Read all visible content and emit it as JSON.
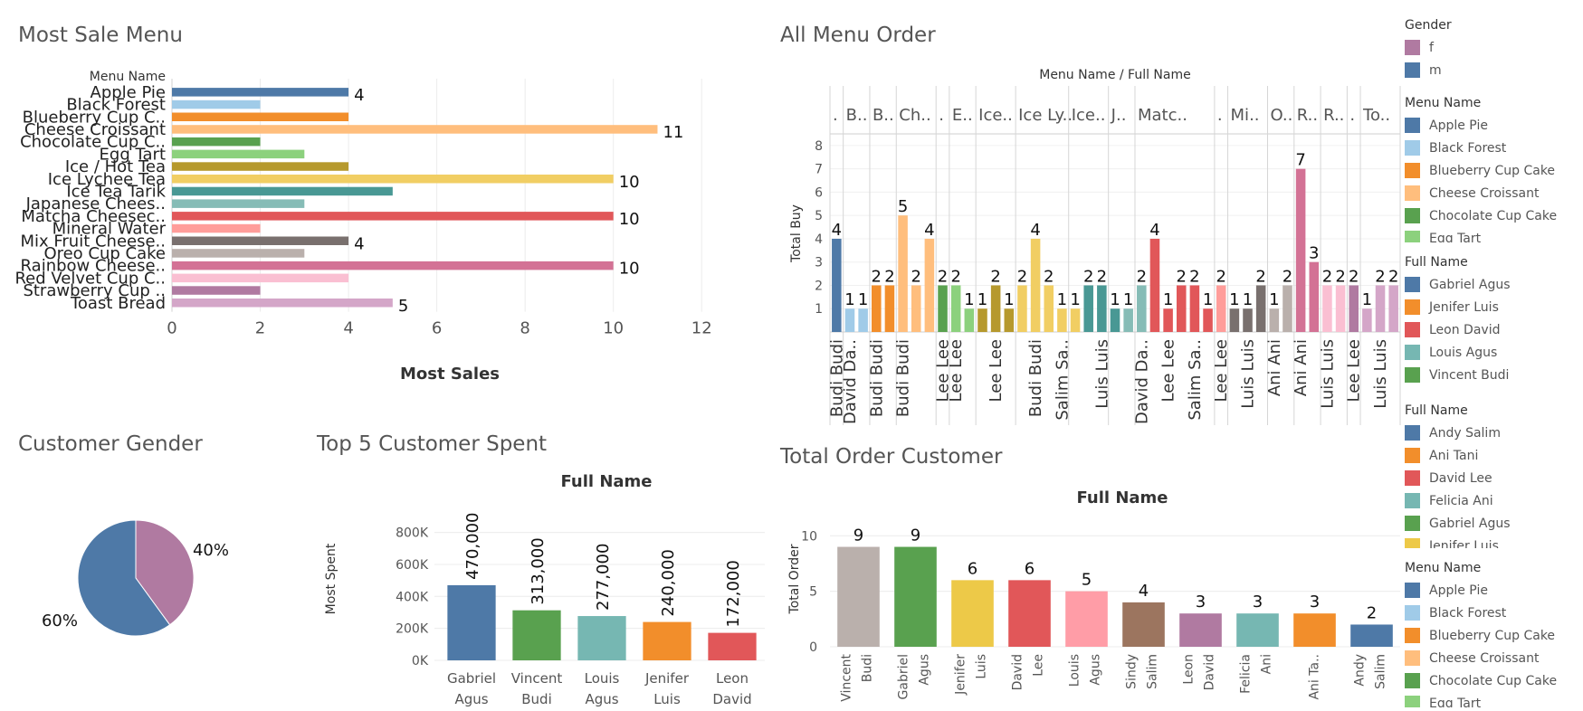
{
  "titles": {
    "most_sale_menu": "Most Sale Menu",
    "all_menu_order": "All Menu Order",
    "customer_gender": "Customer Gender",
    "top5_customer_spent": "Top 5 Customer Spent",
    "total_order_customer": "Total Order Customer"
  },
  "colors": {
    "Apple Pie": "#4e79a7",
    "Black Forest": "#a0cbe8",
    "Blueberry Cup Cake": "#f28e2b",
    "Cheese Croissant": "#ffbe7d",
    "Chocolate Cup Cake": "#59a14f",
    "Egg Tart": "#8cd17d",
    "Ice / Hot Tea": "#b6992d",
    "Ice Lychee Tea": "#f1ce63",
    "Ice Tea Tarik": "#499894",
    "Japanese Chees..": "#86bcb6",
    "Matcha Cheesec..": "#e15759",
    "Mineral Water": "#ff9d9a",
    "Mix Fruit Cheese..": "#79706e",
    "Oreo Cup Cake": "#bab0ac",
    "Rainbow Cheese..": "#d37295",
    "Red Velvet Cup C..": "#fabfd2",
    "Strawberry Cup ..": "#b07aa1",
    "Toast Bread": "#d4a6c8"
  },
  "chart_data": [
    {
      "type": "bar",
      "title": "Most Sale Menu",
      "orientation": "horizontal",
      "category_header": "Menu Name",
      "categories": [
        "Apple Pie",
        "Black Forest",
        "Blueberry Cup C..",
        "Cheese Croissant",
        "Chocolate Cup C..",
        "Egg Tart",
        "Ice / Hot Tea",
        "Ice Lychee Tea",
        "Ice Tea Tarik",
        "Japanese Chees..",
        "Matcha Cheesec..",
        "Mineral Water",
        "Mix Fruit Cheese..",
        "Oreo Cup Cake",
        "Rainbow Cheese..",
        "Red Velvet Cup C..",
        "Strawberry Cup ..",
        "Toast Bread"
      ],
      "values": [
        4,
        2,
        4,
        11,
        2,
        3,
        4,
        10,
        5,
        3,
        10,
        2,
        4,
        3,
        10,
        4,
        2,
        5
      ],
      "data_labels": [
        "4",
        "",
        "",
        "11",
        "",
        "",
        "",
        "10",
        "",
        "",
        "10",
        "",
        "4",
        "",
        "10",
        "",
        "",
        "5"
      ],
      "colors": [
        "#4e79a7",
        "#a0cbe8",
        "#f28e2b",
        "#ffbe7d",
        "#59a14f",
        "#8cd17d",
        "#b6992d",
        "#f1ce63",
        "#499894",
        "#86bcb6",
        "#e15759",
        "#ff9d9a",
        "#79706e",
        "#bab0ac",
        "#d37295",
        "#fabfd2",
        "#b07aa1",
        "#d4a6c8"
      ],
      "xlabel": "Most Sales",
      "xticks": [
        "0",
        "2",
        "4",
        "6",
        "8",
        "10",
        "12"
      ],
      "xlim": [
        0,
        13
      ],
      "grid": true
    },
    {
      "type": "bar",
      "title": "All Menu Order",
      "header": "Menu Name / Full Name",
      "ylabel": "Total Buy",
      "yticks": [
        "1",
        "2",
        "3",
        "4",
        "5",
        "6",
        "7",
        "8"
      ],
      "ylim": [
        0,
        8.5
      ],
      "groups": [
        {
          "label": ".",
          "bars": 1
        },
        {
          "label": "B..",
          "bars": 2
        },
        {
          "label": "B..",
          "bars": 2
        },
        {
          "label": "Ch..",
          "bars": 3
        },
        {
          "label": ".",
          "bars": 1
        },
        {
          "label": "E..",
          "bars": 2
        },
        {
          "label": "Ice..",
          "bars": 3
        },
        {
          "label": "Ice Ly..",
          "bars": 4
        },
        {
          "label": "Ice..",
          "bars": 3
        },
        {
          "label": "J..",
          "bars": 2
        },
        {
          "label": "Matc..",
          "bars": 6
        },
        {
          "label": ".",
          "bars": 1
        },
        {
          "label": "Mi..",
          "bars": 3
        },
        {
          "label": "O..",
          "bars": 2
        },
        {
          "label": "R..",
          "bars": 2
        },
        {
          "label": "R..",
          "bars": 2
        },
        {
          "label": ".",
          "bars": 1
        },
        {
          "label": "To..",
          "bars": 3
        }
      ],
      "values": [
        4,
        1,
        1,
        2,
        2,
        5,
        2,
        4,
        2,
        2,
        1,
        1,
        2,
        1,
        2,
        4,
        2,
        1,
        1,
        2,
        2,
        1,
        1,
        2,
        4,
        1,
        2,
        2,
        1,
        2,
        1,
        1,
        2,
        1,
        2,
        7,
        3,
        2,
        2,
        2,
        1,
        2,
        2
      ],
      "data_labels": [
        "4",
        "1",
        "1",
        "2",
        "2",
        "5",
        "2",
        "4",
        "2",
        "2",
        "1",
        "1",
        "2",
        "1",
        "2",
        "4",
        "2",
        "1",
        "1",
        "2",
        "2",
        "1",
        "1",
        "2",
        "4",
        "1",
        "2",
        "2",
        "1",
        "2",
        "1",
        "1",
        "2",
        "1",
        "2",
        "7",
        "3",
        "2",
        "2",
        "2",
        "1",
        "2",
        "2"
      ],
      "colors": [
        "#4e79a7",
        "#a0cbe8",
        "#a0cbe8",
        "#f28e2b",
        "#f28e2b",
        "#ffbe7d",
        "#ffbe7d",
        "#ffbe7d",
        "#59a14f",
        "#8cd17d",
        "#8cd17d",
        "#b6992d",
        "#b6992d",
        "#b6992d",
        "#f1ce63",
        "#f1ce63",
        "#f1ce63",
        "#f1ce63",
        "#f1ce63",
        "#499894",
        "#499894",
        "#499894",
        "#86bcb6",
        "#86bcb6",
        "#e15759",
        "#e15759",
        "#e15759",
        "#e15759",
        "#e15759",
        "#ff9d9a",
        "#79706e",
        "#79706e",
        "#79706e",
        "#bab0ac",
        "#bab0ac",
        "#d37295",
        "#d37295",
        "#fabfd2",
        "#fabfd2",
        "#b07aa1",
        "#d4a6c8",
        "#d4a6c8",
        "#d4a6c8"
      ],
      "x_labels": [
        "Budi Budi",
        "David Da..",
        "",
        "Budi Budi",
        "",
        "Budi Budi",
        "",
        "",
        "Lee Lee",
        "Lee Lee",
        "",
        "",
        "Lee Lee",
        "",
        "",
        "Budi Budi",
        "",
        "Salim Sa..",
        "",
        "",
        "Luis Luis",
        "",
        "",
        "David Da..",
        "",
        "Lee Lee",
        "",
        "Salim Sa..",
        "",
        "Lee Lee",
        "",
        "Luis Luis",
        "",
        "Ani Ani",
        "",
        "Ani Ani",
        "",
        "Luis Luis",
        "",
        "Lee Lee",
        "",
        "Luis Luis",
        ""
      ]
    },
    {
      "type": "pie",
      "title": "Customer Gender",
      "slices": [
        {
          "label": "f",
          "value": 40,
          "text": "40%",
          "color": "#b07aa1"
        },
        {
          "label": "m",
          "value": 60,
          "text": "60%",
          "color": "#4e79a7"
        }
      ]
    },
    {
      "type": "bar",
      "title": "Top 5 Customer Spent",
      "header": "Full Name",
      "categories": [
        [
          "Gabriel",
          "Agus"
        ],
        [
          "Vincent",
          "Budi"
        ],
        [
          "Louis",
          "Agus"
        ],
        [
          "Jenifer",
          "Luis"
        ],
        [
          "Leon",
          "David"
        ]
      ],
      "values": [
        470000,
        313000,
        277000,
        240000,
        172000
      ],
      "data_labels": [
        "470,000",
        "313,000",
        "277,000",
        "240,000",
        "172,000"
      ],
      "colors": [
        "#4e79a7",
        "#59a14f",
        "#76b7b2",
        "#f28e2b",
        "#e15759"
      ],
      "ylabel": "Most Spent",
      "yticks": [
        {
          "v": 0,
          "t": "0K"
        },
        {
          "v": 200000,
          "t": "200K"
        },
        {
          "v": 400000,
          "t": "400K"
        },
        {
          "v": 600000,
          "t": "600K"
        },
        {
          "v": 800000,
          "t": "800K"
        }
      ],
      "ylim": [
        0,
        860000
      ],
      "grid": true
    },
    {
      "type": "bar",
      "title": "Total Order Customer",
      "header": "Full Name",
      "categories": [
        [
          "Vincent",
          "Budi"
        ],
        [
          "Gabriel",
          "Agus"
        ],
        [
          "Jenifer",
          "Luis"
        ],
        [
          "David",
          "Lee"
        ],
        [
          "Louis",
          "Agus"
        ],
        [
          "Sindy",
          "Salim"
        ],
        [
          "Leon",
          "David"
        ],
        [
          "Felicia",
          "Ani"
        ],
        [
          "Ani Ta..",
          ""
        ],
        [
          "Andy",
          "Salim"
        ]
      ],
      "values": [
        9,
        9,
        6,
        6,
        5,
        4,
        3,
        3,
        3,
        2
      ],
      "data_labels": [
        "9",
        "9",
        "6",
        "6",
        "5",
        "4",
        "3",
        "3",
        "3",
        "2"
      ],
      "colors": [
        "#bab0ac",
        "#59a14f",
        "#edc948",
        "#e15759",
        "#ff9da7",
        "#9c755f",
        "#b07aa1",
        "#76b7b2",
        "#f28e2b",
        "#4e79a7"
      ],
      "ylabel": "Total Order",
      "yticks": [
        "0",
        "5",
        "10"
      ],
      "ylim": [
        0,
        11
      ],
      "grid": true
    }
  ],
  "legends": [
    {
      "title": "Gender",
      "items": [
        {
          "label": "f",
          "color": "#b07aa1"
        },
        {
          "label": "m",
          "color": "#4e79a7"
        }
      ]
    },
    {
      "title": "Menu Name",
      "items": [
        {
          "label": "Apple Pie",
          "color": "#4e79a7"
        },
        {
          "label": "Black Forest",
          "color": "#a0cbe8"
        },
        {
          "label": "Blueberry Cup Cake",
          "color": "#f28e2b"
        },
        {
          "label": "Cheese Croissant",
          "color": "#ffbe7d"
        },
        {
          "label": "Chocolate Cup Cake",
          "color": "#59a14f"
        },
        {
          "label": "Egg Tart",
          "color": "#8cd17d"
        }
      ]
    },
    {
      "title": "Full Name",
      "items": [
        {
          "label": "Gabriel Agus",
          "color": "#4e79a7"
        },
        {
          "label": "Jenifer Luis",
          "color": "#f28e2b"
        },
        {
          "label": "Leon David",
          "color": "#e15759"
        },
        {
          "label": "Louis Agus",
          "color": "#76b7b2"
        },
        {
          "label": "Vincent Budi",
          "color": "#59a14f"
        }
      ]
    },
    {
      "title": "Full Name",
      "items": [
        {
          "label": "Andy Salim",
          "color": "#4e79a7"
        },
        {
          "label": "Ani Tani",
          "color": "#f28e2b"
        },
        {
          "label": "David Lee",
          "color": "#e15759"
        },
        {
          "label": "Felicia Ani",
          "color": "#76b7b2"
        },
        {
          "label": "Gabriel Agus",
          "color": "#59a14f"
        },
        {
          "label": "Jenifer Luis",
          "color": "#edc948"
        }
      ]
    },
    {
      "title": "Menu Name",
      "items": [
        {
          "label": "Apple Pie",
          "color": "#4e79a7"
        },
        {
          "label": "Black Forest",
          "color": "#a0cbe8"
        },
        {
          "label": "Blueberry Cup Cake",
          "color": "#f28e2b"
        },
        {
          "label": "Cheese Croissant",
          "color": "#ffbe7d"
        },
        {
          "label": "Chocolate Cup Cake",
          "color": "#59a14f"
        },
        {
          "label": "Egg Tart",
          "color": "#8cd17d"
        }
      ]
    }
  ]
}
